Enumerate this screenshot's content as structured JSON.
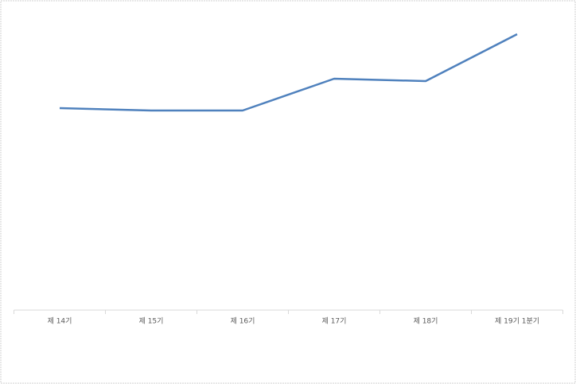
{
  "chart_data": {
    "type": "line",
    "categories": [
      "제 14기",
      "제 15기",
      "제 16기",
      "제 17기",
      "제 18기",
      "제 19기 1분기"
    ],
    "series": [
      {
        "color": "#4f81bd",
        "values": [
          254,
          251,
          251,
          291,
          288,
          347
        ]
      }
    ],
    "ylim": [
      0,
      380
    ]
  }
}
